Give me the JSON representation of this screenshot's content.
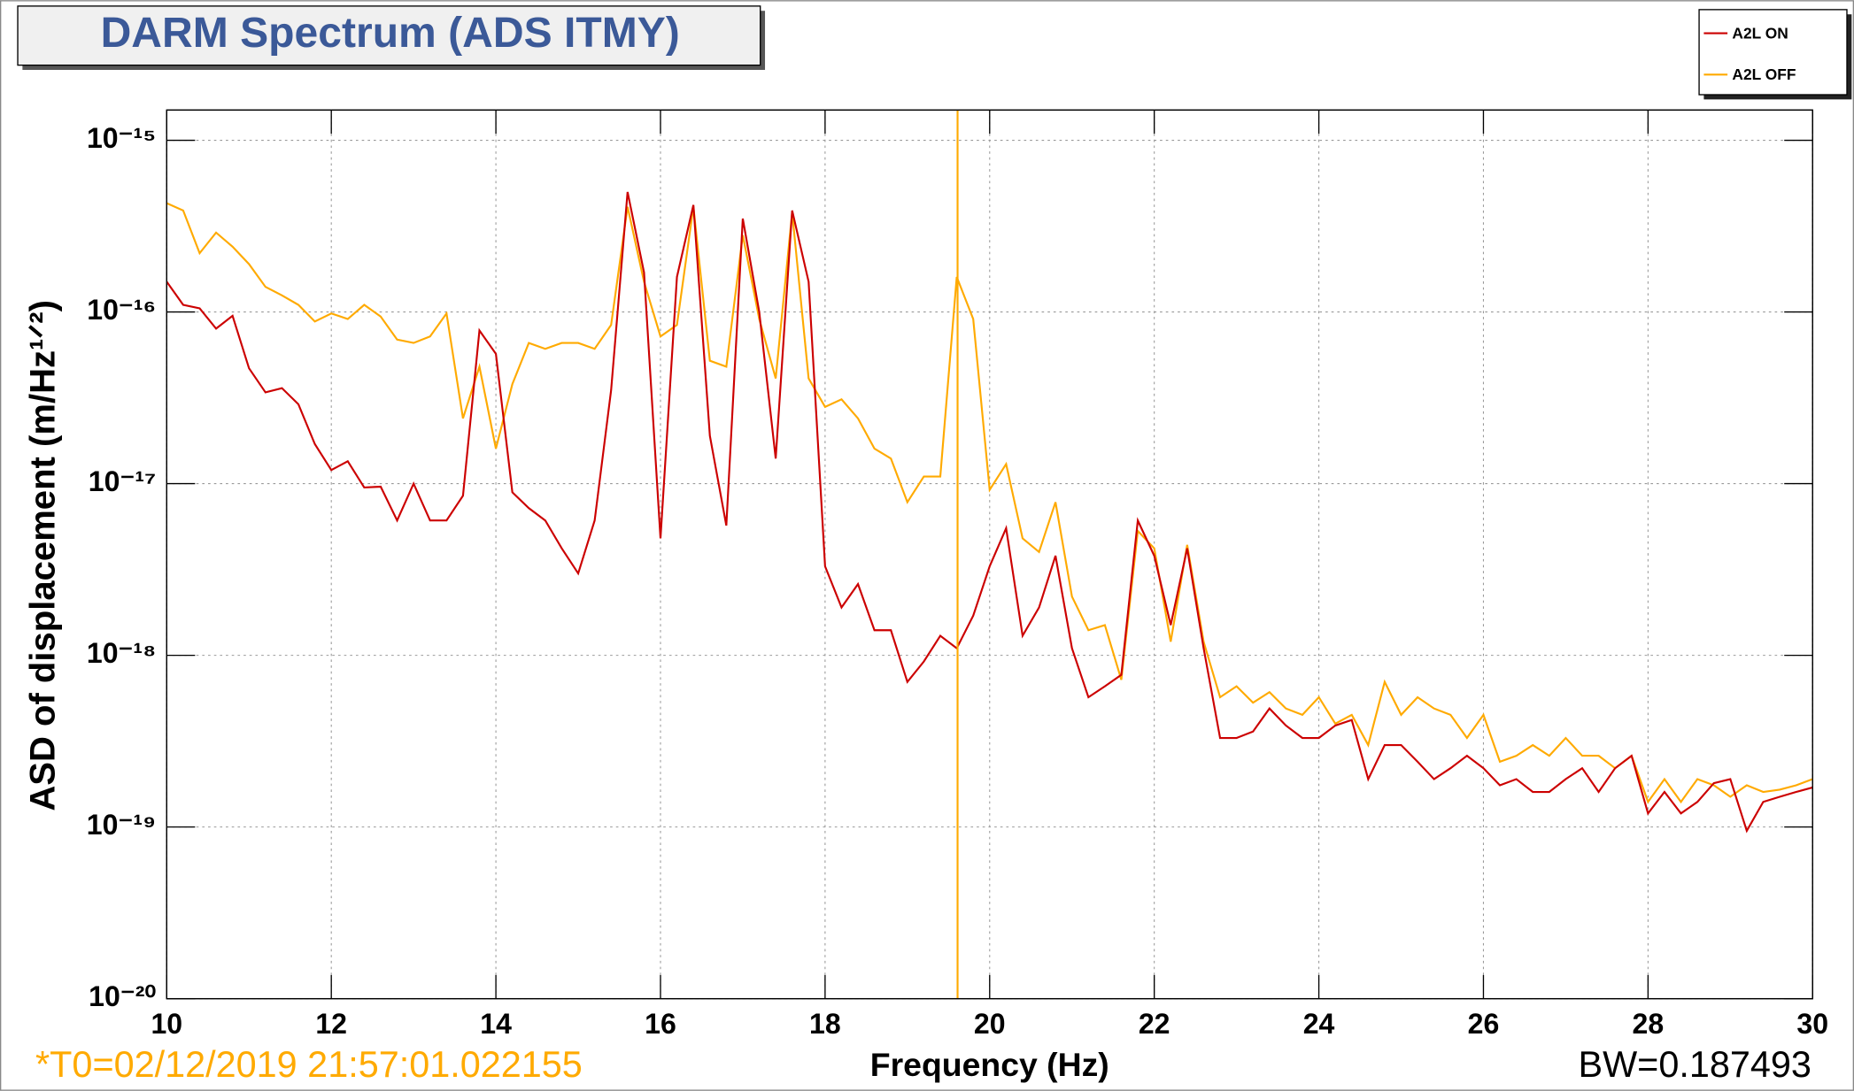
{
  "chart_data": {
    "type": "line",
    "title": "DARM Spectrum (ADS ITMY)",
    "x_label": "Frequency (Hz)",
    "y_label": "ASD of displacement (m/Hz¹ᐟ²)",
    "annotations": [
      "*T0=02/12/2019 21:57:01.022155",
      "BW=0.187493"
    ],
    "log_y": true,
    "grid": true,
    "legend_position": "top-right",
    "cursor_x": 19.61,
    "cursor_color": "#ffaa00",
    "xlim": [
      10,
      30
    ],
    "xticks": [
      10,
      12,
      14,
      16,
      18,
      20,
      22,
      24,
      26,
      28,
      30
    ],
    "ylim": [
      1e-20,
      1.5e-15
    ],
    "yticks": [
      {
        "value": 1e-20,
        "label": "10⁻²⁰"
      },
      {
        "value": 1e-19,
        "label": "10⁻¹⁹"
      },
      {
        "value": 1e-18,
        "label": "10⁻¹⁸"
      },
      {
        "value": 1e-17,
        "label": "10⁻¹⁷"
      },
      {
        "value": 1e-16,
        "label": "10⁻¹⁶"
      },
      {
        "value": 1e-15,
        "label": "10⁻¹⁵"
      }
    ],
    "x": [
      10.0,
      10.2,
      10.4,
      10.6,
      10.8,
      11.0,
      11.2,
      11.4,
      11.6,
      11.8,
      12.0,
      12.2,
      12.4,
      12.6,
      12.8,
      13.0,
      13.2,
      13.4,
      13.6,
      13.8,
      14.0,
      14.2,
      14.4,
      14.6,
      14.8,
      15.0,
      15.2,
      15.4,
      15.6,
      15.8,
      16.0,
      16.2,
      16.4,
      16.6,
      16.8,
      17.0,
      17.2,
      17.4,
      17.6,
      17.8,
      18.0,
      18.2,
      18.4,
      18.6,
      18.8,
      19.0,
      19.2,
      19.4,
      19.6,
      19.8,
      20.0,
      20.2,
      20.4,
      20.6,
      20.8,
      21.0,
      21.2,
      21.4,
      21.6,
      21.8,
      22.0,
      22.2,
      22.4,
      22.6,
      22.8,
      23.0,
      23.2,
      23.4,
      23.6,
      23.8,
      24.0,
      24.2,
      24.4,
      24.6,
      24.8,
      25.0,
      25.2,
      25.4,
      25.6,
      25.8,
      26.0,
      26.2,
      26.4,
      26.6,
      26.8,
      27.0,
      27.2,
      27.4,
      27.6,
      27.8,
      28.0,
      28.2,
      28.4,
      28.6,
      28.8,
      29.0,
      29.2,
      29.4,
      29.6,
      29.8,
      30.0
    ],
    "series": [
      {
        "name": "A2L ON",
        "color": "#cc0000",
        "values": [
          1.5e-16,
          1.1e-16,
          1.05e-16,
          8e-17,
          9.5e-17,
          4.7e-17,
          3.4e-17,
          3.6e-17,
          2.9e-17,
          1.7e-17,
          1.2e-17,
          1.35e-17,
          9.5e-18,
          9.6e-18,
          6.1e-18,
          1e-17,
          6.1e-18,
          6.1e-18,
          8.5e-18,
          7.8e-17,
          5.7e-17,
          8.9e-18,
          7.2e-18,
          6.1e-18,
          4.2e-18,
          3e-18,
          6.1e-18,
          3.5e-17,
          5e-16,
          1.7e-16,
          4.8e-18,
          1.6e-16,
          4.2e-16,
          1.9e-17,
          5.7e-18,
          3.5e-16,
          1e-16,
          1.4e-17,
          3.9e-16,
          1.5e-16,
          3.3e-18,
          1.9e-18,
          2.6e-18,
          1.4e-18,
          1.4e-18,
          7e-19,
          9.2e-19,
          1.3e-18,
          1.1e-18,
          1.7e-18,
          3.3e-18,
          5.5e-18,
          1.3e-18,
          1.9e-18,
          3.8e-18,
          1.1e-18,
          5.7e-19,
          6.6e-19,
          7.7e-19,
          6.1e-18,
          3.8e-18,
          1.5e-18,
          4.2e-18,
          1.1e-18,
          3.3e-19,
          3.3e-19,
          3.6e-19,
          4.9e-19,
          3.9e-19,
          3.3e-19,
          3.3e-19,
          3.9e-19,
          4.2e-19,
          1.9e-19,
          3e-19,
          3e-19,
          2.4e-19,
          1.9e-19,
          2.2e-19,
          2.6e-19,
          2.2e-19,
          1.75e-19,
          1.9e-19,
          1.6e-19,
          1.6e-19,
          1.9e-19,
          2.2e-19,
          1.6e-19,
          2.2e-19,
          2.6e-19,
          1.2e-19,
          1.6e-19,
          1.2e-19,
          1.4e-19,
          1.8e-19,
          1.9e-19,
          9.5e-20,
          1.4e-19,
          1.5e-19,
          1.6e-19,
          1.7e-19
        ]
      },
      {
        "name": "A2L OFF",
        "color": "#ffaa00",
        "values": [
          4.3e-16,
          3.9e-16,
          2.2e-16,
          2.9e-16,
          2.4e-16,
          1.9e-16,
          1.4e-16,
          1.25e-16,
          1.1e-16,
          8.8e-17,
          9.8e-17,
          9.1e-17,
          1.1e-16,
          9.4e-17,
          6.9e-17,
          6.6e-17,
          7.2e-17,
          9.8e-17,
          2.4e-17,
          4.8e-17,
          1.6e-17,
          3.8e-17,
          6.6e-17,
          6.1e-17,
          6.6e-17,
          6.6e-17,
          6.1e-17,
          8.4e-17,
          4.1e-16,
          1.5e-16,
          7.2e-17,
          8.4e-17,
          4.1e-16,
          5.2e-17,
          4.8e-17,
          2.8e-16,
          9.1e-17,
          4.1e-17,
          3.8e-16,
          4.1e-17,
          2.8e-17,
          3.1e-17,
          2.4e-17,
          1.6e-17,
          1.4e-17,
          7.8e-18,
          1.1e-17,
          1.1e-17,
          1.6e-16,
          9.1e-17,
          9.2e-18,
          1.3e-17,
          4.8e-18,
          4e-18,
          7.8e-18,
          2.2e-18,
          1.4e-18,
          1.5e-18,
          7.2e-19,
          5.3e-18,
          4.2e-18,
          1.2e-18,
          4.4e-18,
          1.2e-18,
          5.7e-19,
          6.6e-19,
          5.3e-19,
          6.1e-19,
          4.9e-19,
          4.5e-19,
          5.7e-19,
          4e-19,
          4.5e-19,
          3e-19,
          7e-19,
          4.5e-19,
          5.7e-19,
          4.9e-19,
          4.5e-19,
          3.3e-19,
          4.5e-19,
          2.4e-19,
          2.6e-19,
          3e-19,
          2.6e-19,
          3.3e-19,
          2.6e-19,
          2.6e-19,
          2.2e-19,
          2.6e-19,
          1.4e-19,
          1.9e-19,
          1.4e-19,
          1.9e-19,
          1.75e-19,
          1.5e-19,
          1.75e-19,
          1.6e-19,
          1.65e-19,
          1.75e-19,
          1.9e-19
        ]
      }
    ]
  }
}
